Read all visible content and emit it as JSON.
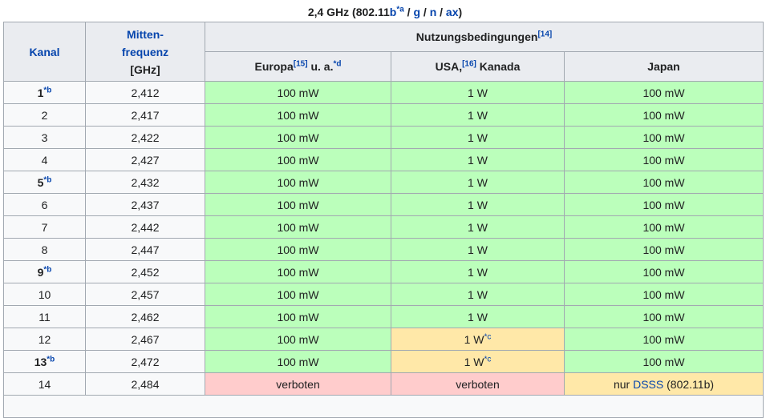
{
  "caption": {
    "prefix": "2,4 GHz (802.11",
    "b": "b",
    "b_note": "*a",
    "sep1": " / ",
    "g": "g",
    "sep2": " / ",
    "n": "n",
    "sep3": " / ",
    "ax": "ax",
    "suffix": ")"
  },
  "header": {
    "kanal": "Kanal",
    "freq_line1": "Mitten-",
    "freq_line2": "frequenz",
    "freq_unit": "[GHz]",
    "usage": "Nutzungsbedingungen",
    "usage_ref": "[14]",
    "europa": "Europa",
    "europa_ref": "[15]",
    "europa_suffix": " u. a.",
    "europa_note": "*d",
    "usa": "USA,",
    "usa_ref": "[16]",
    "usa_suffix": " Kanada",
    "japan": "Japan"
  },
  "rows": [
    {
      "ch": "1",
      "note": "*b",
      "freq": "2,412",
      "eu": "100 mW",
      "us": "1 W",
      "us_note": "",
      "jp": "100 mW"
    },
    {
      "ch": "2",
      "note": "",
      "freq": "2,417",
      "eu": "100 mW",
      "us": "1 W",
      "us_note": "",
      "jp": "100 mW"
    },
    {
      "ch": "3",
      "note": "",
      "freq": "2,422",
      "eu": "100 mW",
      "us": "1 W",
      "us_note": "",
      "jp": "100 mW"
    },
    {
      "ch": "4",
      "note": "",
      "freq": "2,427",
      "eu": "100 mW",
      "us": "1 W",
      "us_note": "",
      "jp": "100 mW"
    },
    {
      "ch": "5",
      "note": "*b",
      "freq": "2,432",
      "eu": "100 mW",
      "us": "1 W",
      "us_note": "",
      "jp": "100 mW"
    },
    {
      "ch": "6",
      "note": "",
      "freq": "2,437",
      "eu": "100 mW",
      "us": "1 W",
      "us_note": "",
      "jp": "100 mW"
    },
    {
      "ch": "7",
      "note": "",
      "freq": "2,442",
      "eu": "100 mW",
      "us": "1 W",
      "us_note": "",
      "jp": "100 mW"
    },
    {
      "ch": "8",
      "note": "",
      "freq": "2,447",
      "eu": "100 mW",
      "us": "1 W",
      "us_note": "",
      "jp": "100 mW"
    },
    {
      "ch": "9",
      "note": "*b",
      "freq": "2,452",
      "eu": "100 mW",
      "us": "1 W",
      "us_note": "",
      "jp": "100 mW"
    },
    {
      "ch": "10",
      "note": "",
      "freq": "2,457",
      "eu": "100 mW",
      "us": "1 W",
      "us_note": "",
      "jp": "100 mW"
    },
    {
      "ch": "11",
      "note": "",
      "freq": "2,462",
      "eu": "100 mW",
      "us": "1 W",
      "us_note": "",
      "jp": "100 mW"
    },
    {
      "ch": "12",
      "note": "",
      "freq": "2,467",
      "eu": "100 mW",
      "us": "1 W",
      "us_note": "*c",
      "jp": "100 mW"
    },
    {
      "ch": "13",
      "note": "*b",
      "freq": "2,472",
      "eu": "100 mW",
      "us": "1 W",
      "us_note": "*c",
      "jp": "100 mW"
    },
    {
      "ch": "14",
      "note": "",
      "freq": "2,484",
      "eu": "verboten",
      "us": "verboten",
      "us_note": "",
      "jp": "",
      "jp_prefix": "nur ",
      "jp_link": "DSSS",
      "jp_suffix": " (802.11b)"
    }
  ],
  "colors": {
    "allowed": "#bbffbb",
    "restricted": "#ffe8a8",
    "forbidden": "#ffcccc",
    "link": "#0645ad",
    "header_bg": "#eaecf0"
  }
}
